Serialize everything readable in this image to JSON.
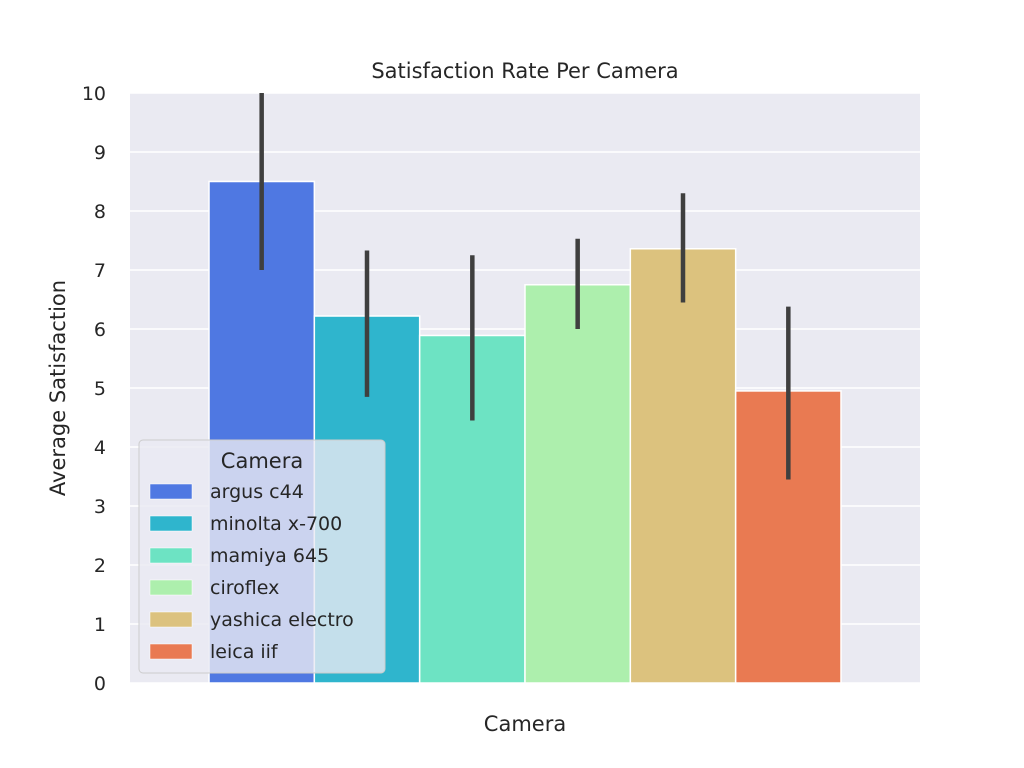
{
  "chart_data": {
    "type": "bar",
    "title": "Satisfaction Rate Per Camera",
    "xlabel": "Camera",
    "ylabel": "Average Satisfaction",
    "ylim": [
      0,
      10
    ],
    "yticks": [
      0,
      1,
      2,
      3,
      4,
      5,
      6,
      7,
      8,
      9,
      10
    ],
    "grid": true,
    "legend": {
      "title": "Camera",
      "placement": "lower-left"
    },
    "series": [
      {
        "name": "argus c44",
        "value": 8.5,
        "err_low": 7.0,
        "err_high": 10.0,
        "color": "#4f78e2"
      },
      {
        "name": "minolta x-700",
        "value": 6.22,
        "err_low": 4.85,
        "err_high": 7.33,
        "color": "#2fb5cd"
      },
      {
        "name": "mamiya 645",
        "value": 5.89,
        "err_low": 4.45,
        "err_high": 7.25,
        "color": "#6de3c3"
      },
      {
        "name": "ciroflex",
        "value": 6.75,
        "err_low": 6.0,
        "err_high": 7.53,
        "color": "#adefad"
      },
      {
        "name": "yashica electro",
        "value": 7.36,
        "err_low": 6.45,
        "err_high": 8.3,
        "color": "#dcc27e"
      },
      {
        "name": "leica iif",
        "value": 4.95,
        "err_low": 3.45,
        "err_high": 6.38,
        "color": "#e97a52"
      }
    ]
  }
}
